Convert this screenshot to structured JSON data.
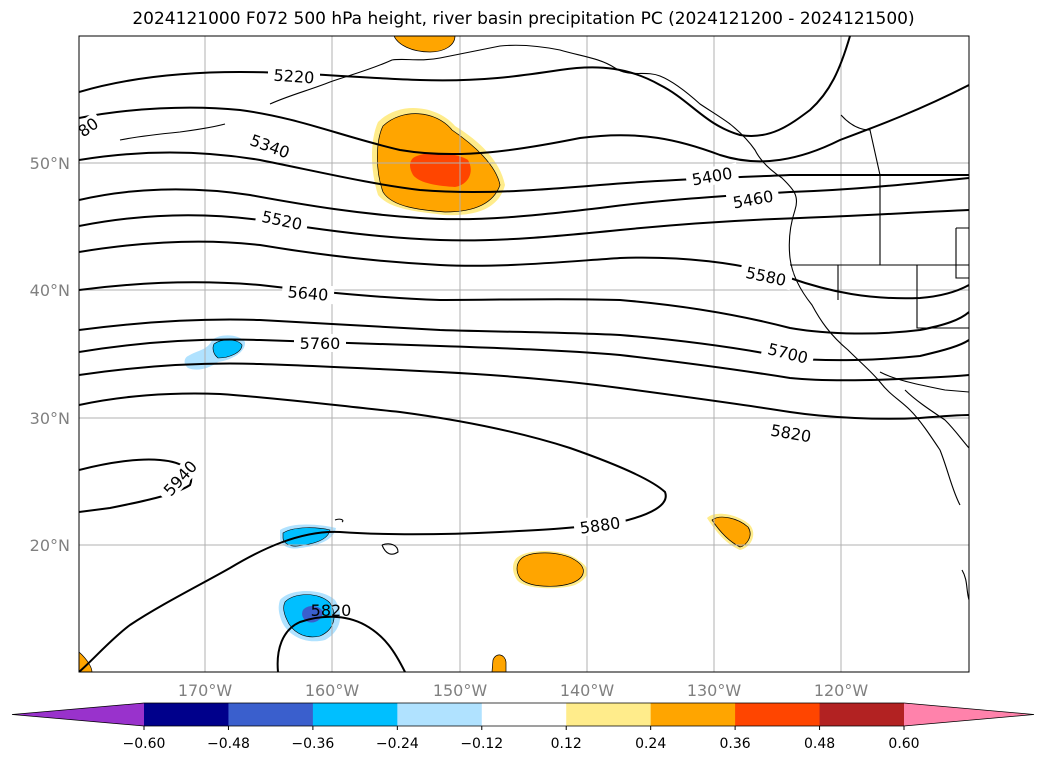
{
  "title": "2024121000 F072 500 hPa height, river basin precipitation PC (2024121200 - 2024121500)",
  "map": {
    "lat_labels": [
      "50°N",
      "40°N",
      "30°N",
      "20°N"
    ],
    "lon_labels": [
      "170°W",
      "160°W",
      "150°W",
      "140°W",
      "130°W",
      "120°W"
    ],
    "contour_labels": [
      "5220",
      "5340",
      "5400",
      "5460",
      "5520",
      "5580",
      "5640",
      "5700",
      "5760",
      "5820",
      "5880",
      "5940",
      "5820",
      "80"
    ]
  },
  "colorbar": {
    "colors": {
      "under": "#9932cc",
      "bins": [
        "#00008b",
        "#3a5fcd",
        "#00bfff",
        "#b0e2ff",
        "#ffffff",
        "#ffec8b",
        "#ffa500",
        "#ff4500",
        "#b22222"
      ],
      "over": "#ff82ab"
    },
    "tick_labels": [
      "−0.60",
      "−0.48",
      "−0.36",
      "−0.24",
      "−0.12",
      "0.12",
      "0.24",
      "0.36",
      "0.48",
      "0.60"
    ]
  }
}
